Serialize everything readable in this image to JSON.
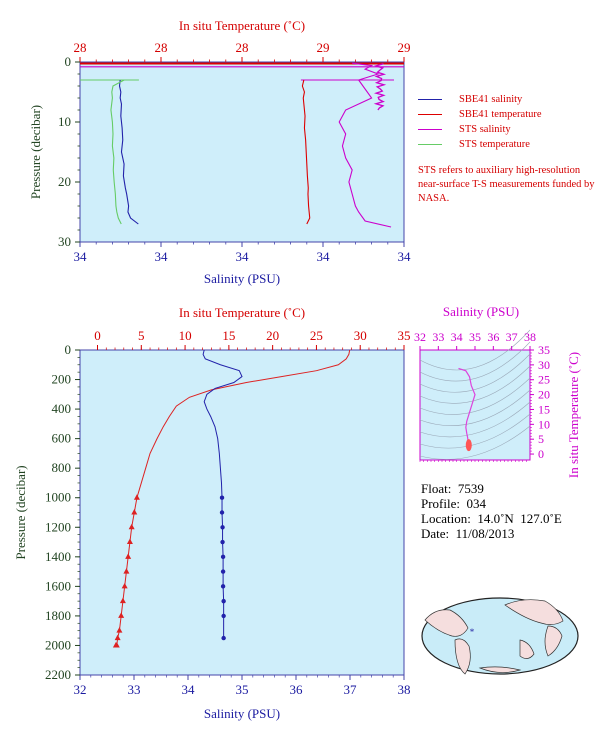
{
  "chart_data": [
    {
      "type": "line",
      "name": "near-surface",
      "title": "",
      "x_top_label": "In situ Temperature (˚C)",
      "x_top_ticks": [
        "28",
        "28",
        "28",
        "29",
        "29"
      ],
      "x_top_range": [
        27.95,
        29.05
      ],
      "x_bottom_label": "Salinity (PSU)",
      "x_bottom_ticks": [
        "34",
        "34",
        "34",
        "34",
        "34"
      ],
      "x_bottom_range": [
        34.0,
        34.5
      ],
      "y_label": "Pressure (decibar)",
      "y_ticks": [
        "0",
        "10",
        "20",
        "30"
      ],
      "ylim": [
        30,
        0
      ],
      "series": [
        {
          "name": "SBE41 salinity",
          "color": "#2222aa",
          "axis": "bottom",
          "x": [
            34.062,
            34.061,
            34.063,
            34.062,
            34.064,
            34.063,
            34.065,
            34.066,
            34.064,
            34.068,
            34.067,
            34.07,
            34.072,
            34.075,
            34.074,
            34.078,
            34.09
          ],
          "y": [
            3,
            4,
            5,
            6,
            7,
            9,
            11,
            13,
            15,
            17,
            19,
            21,
            22,
            24,
            25,
            26,
            27
          ]
        },
        {
          "name": "SBE41 temperature",
          "color": "#dd0000",
          "axis": "top",
          "x": [
            28.71,
            28.705,
            28.712,
            28.708,
            28.71,
            28.714,
            28.712,
            28.716,
            28.718,
            28.72,
            28.722,
            28.725,
            28.724,
            28.726,
            28.728,
            28.73,
            28.72
          ],
          "y": [
            3,
            4,
            5,
            6,
            7,
            9,
            11,
            13,
            15,
            17,
            19,
            21,
            22,
            24,
            25,
            26,
            27
          ]
        },
        {
          "name": "STS salinity",
          "color": "#cc00cc",
          "axis": "bottom",
          "x": [
            34.42,
            34.45,
            34.44,
            34.46,
            34.43,
            34.45,
            34.41,
            34.4,
            34.41,
            34.405,
            34.41,
            34.42,
            34.415,
            34.42,
            34.425,
            34.43,
            34.44,
            34.48
          ],
          "y": [
            0.2,
            0.6,
            1.2,
            2,
            3,
            6,
            8,
            10,
            12,
            14,
            16,
            18,
            20,
            22,
            24,
            25,
            26.5,
            27.5
          ]
        },
        {
          "name": "STS temperature",
          "color": "#66cc66",
          "axis": "top",
          "x": [
            28.1,
            28.062,
            28.058,
            28.06,
            28.055,
            28.06,
            28.062,
            28.06,
            28.065,
            28.063,
            28.066,
            28.068,
            28.07,
            28.072,
            28.075,
            28.08,
            28.09
          ],
          "y": [
            3,
            4,
            5,
            6,
            8,
            10,
            12,
            14,
            16,
            18,
            20,
            21,
            22,
            24,
            25,
            26,
            27
          ]
        }
      ]
    },
    {
      "type": "line",
      "name": "full-profile",
      "title": "",
      "x_top_label": "In situ Temperature (˚C)",
      "x_top_ticks": [
        "0",
        "5",
        "10",
        "15",
        "20",
        "25",
        "30",
        "35"
      ],
      "x_top_range": [
        -2,
        35
      ],
      "x_bottom_label": "Salinity (PSU)",
      "x_bottom_ticks": [
        "32",
        "33",
        "34",
        "35",
        "36",
        "37",
        "38"
      ],
      "x_bottom_range": [
        32,
        38
      ],
      "y_label": "Pressure (decibar)",
      "y_ticks": [
        "0",
        "200",
        "400",
        "600",
        "800",
        "1000",
        "1200",
        "1400",
        "1600",
        "1800",
        "2000",
        "2200"
      ],
      "ylim": [
        2200,
        0
      ],
      "series": [
        {
          "name": "temperature",
          "color": "#dd2222",
          "axis": "top",
          "marker": "triangle",
          "x": [
            28.8,
            28.7,
            28.4,
            27.5,
            25,
            21,
            17,
            13,
            10.5,
            9,
            8.2,
            7.5,
            6.8,
            6,
            5.5,
            5,
            4.5,
            4.2,
            3.9,
            3.7,
            3.5,
            3.3,
            3.1,
            2.9,
            2.7,
            2.5,
            2.3,
            2.2,
            2.1
          ],
          "y": [
            0,
            30,
            60,
            100,
            140,
            180,
            220,
            270,
            320,
            380,
            450,
            520,
            600,
            700,
            800,
            900,
            1000,
            1100,
            1200,
            1300,
            1400,
            1500,
            1600,
            1700,
            1800,
            1900,
            1950,
            2000,
            2000
          ]
        },
        {
          "name": "salinity",
          "color": "#2222aa",
          "axis": "bottom",
          "marker": "dot",
          "x": [
            34.3,
            34.28,
            34.32,
            34.6,
            34.95,
            35.0,
            34.85,
            34.5,
            34.35,
            34.3,
            34.35,
            34.42,
            34.5,
            34.55,
            34.58,
            34.6,
            34.62,
            34.63,
            34.63,
            34.64,
            34.64,
            34.65,
            34.65,
            34.65,
            34.66,
            34.66,
            34.66
          ],
          "y": [
            0,
            30,
            60,
            100,
            140,
            180,
            220,
            260,
            300,
            350,
            400,
            450,
            520,
            600,
            700,
            800,
            900,
            1000,
            1100,
            1200,
            1300,
            1400,
            1500,
            1600,
            1700,
            1800,
            1950
          ]
        }
      ]
    },
    {
      "type": "line",
      "name": "ts-diagram",
      "x_top_label": "Salinity (PSU)",
      "x_top_ticks": [
        "32",
        "33",
        "34",
        "35",
        "36",
        "37",
        "38"
      ],
      "y_right_label": "In situ Temperature (˚C)",
      "y_right_ticks": [
        "0",
        "5",
        "10",
        "15",
        "20",
        "25",
        "30",
        "35"
      ],
      "xlim": [
        32,
        38
      ],
      "ylim": [
        -2,
        35
      ],
      "series": [
        {
          "name": "T-S",
          "color": "#dd44dd",
          "x": [
            34.1,
            34.5,
            34.7,
            34.8,
            35.0,
            34.85,
            34.7,
            34.55,
            34.5,
            34.55,
            34.6,
            34.62,
            34.64,
            34.66
          ],
          "y": [
            28.8,
            28,
            26,
            23,
            20,
            17,
            14,
            11,
            9,
            7,
            5.5,
            4,
            3,
            2.2
          ]
        }
      ]
    }
  ],
  "legend": {
    "items": [
      {
        "label": "SBE41 salinity",
        "color": "#2222aa"
      },
      {
        "label": "SBE41 temperature",
        "color": "#dd0000"
      },
      {
        "label": "STS salinity",
        "color": "#cc00cc"
      },
      {
        "label": "STS temperature",
        "color": "#66cc66"
      }
    ]
  },
  "note": "STS refers to auxiliary high-resolution near-surface T-S measurements funded by NASA.",
  "float_info": {
    "float_label": "Float:",
    "float_value": "7539",
    "profile_label": "Profile:",
    "profile_value": "034",
    "location_label": "Location:",
    "location_lat": "14.0˚N",
    "location_lon": "127.0˚E",
    "date_label": "Date:",
    "date_value": "11/08/2013"
  },
  "colors": {
    "panel_bg": "#cfeefa",
    "red": "#d40000",
    "blue": "#1a1aa0",
    "magenta": "#cc00cc",
    "map_land": "#f5dede",
    "map_sea": "#c9ecf8"
  },
  "map_icon": "world-map-icon"
}
